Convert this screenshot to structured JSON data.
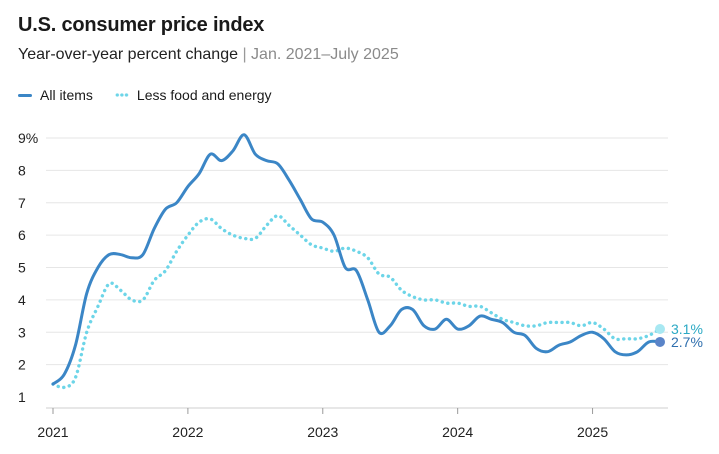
{
  "header": {
    "title": "U.S. consumer price index",
    "subtitle_main": "Year-over-year percent change",
    "subtitle_sep": "|",
    "subtitle_range": "Jan. 2021–July 2025"
  },
  "legend": [
    {
      "label": "All items",
      "style": "solid",
      "color": "#3b86c6"
    },
    {
      "label": "Less food and energy",
      "style": "dotted",
      "color": "#6dd5e8"
    }
  ],
  "chart_data": {
    "type": "line",
    "title": "U.S. consumer price index",
    "subtitle": "Year-over-year percent change | Jan. 2021–July 2025",
    "xlabel": "",
    "ylabel": "",
    "ylim": [
      1,
      9
    ],
    "xlim": [
      "2021-01",
      "2025-07"
    ],
    "x_ticks": [
      "2021",
      "2022",
      "2023",
      "2024",
      "2025"
    ],
    "y_ticks": [
      "1",
      "2",
      "3",
      "4",
      "5",
      "6",
      "7",
      "8",
      "9%"
    ],
    "grid": "horizontal",
    "legend_position": "top-left",
    "x": [
      "2021-01",
      "2021-02",
      "2021-03",
      "2021-04",
      "2021-05",
      "2021-06",
      "2021-07",
      "2021-08",
      "2021-09",
      "2021-10",
      "2021-11",
      "2021-12",
      "2022-01",
      "2022-02",
      "2022-03",
      "2022-04",
      "2022-05",
      "2022-06",
      "2022-07",
      "2022-08",
      "2022-09",
      "2022-10",
      "2022-11",
      "2022-12",
      "2023-01",
      "2023-02",
      "2023-03",
      "2023-04",
      "2023-05",
      "2023-06",
      "2023-07",
      "2023-08",
      "2023-09",
      "2023-10",
      "2023-11",
      "2023-12",
      "2024-01",
      "2024-02",
      "2024-03",
      "2024-04",
      "2024-05",
      "2024-06",
      "2024-07",
      "2024-08",
      "2024-09",
      "2024-10",
      "2024-11",
      "2024-12",
      "2025-01",
      "2025-02",
      "2025-03",
      "2025-04",
      "2025-05",
      "2025-06",
      "2025-07"
    ],
    "series": [
      {
        "name": "All items",
        "color": "#3b86c6",
        "style": "solid",
        "values": [
          1.4,
          1.7,
          2.6,
          4.2,
          5.0,
          5.4,
          5.4,
          5.3,
          5.4,
          6.2,
          6.8,
          7.0,
          7.5,
          7.9,
          8.5,
          8.3,
          8.6,
          9.1,
          8.5,
          8.3,
          8.2,
          7.7,
          7.1,
          6.5,
          6.4,
          6.0,
          5.0,
          4.9,
          4.0,
          3.0,
          3.2,
          3.7,
          3.7,
          3.2,
          3.1,
          3.4,
          3.1,
          3.2,
          3.5,
          3.4,
          3.3,
          3.0,
          2.9,
          2.5,
          2.4,
          2.6,
          2.7,
          2.9,
          3.0,
          2.8,
          2.4,
          2.3,
          2.4,
          2.7,
          2.7
        ],
        "end_label": "2.7%"
      },
      {
        "name": "Less food and energy",
        "color": "#6dd5e8",
        "style": "dotted",
        "values": [
          1.4,
          1.3,
          1.6,
          3.0,
          3.8,
          4.5,
          4.3,
          4.0,
          4.0,
          4.6,
          4.9,
          5.5,
          6.0,
          6.4,
          6.5,
          6.2,
          6.0,
          5.9,
          5.9,
          6.3,
          6.6,
          6.3,
          6.0,
          5.7,
          5.6,
          5.5,
          5.6,
          5.5,
          5.3,
          4.8,
          4.7,
          4.3,
          4.1,
          4.0,
          4.0,
          3.9,
          3.9,
          3.8,
          3.8,
          3.6,
          3.4,
          3.3,
          3.2,
          3.2,
          3.3,
          3.3,
          3.3,
          3.2,
          3.3,
          3.1,
          2.8,
          2.8,
          2.8,
          2.9,
          3.1
        ],
        "end_label": "3.1%"
      }
    ]
  }
}
